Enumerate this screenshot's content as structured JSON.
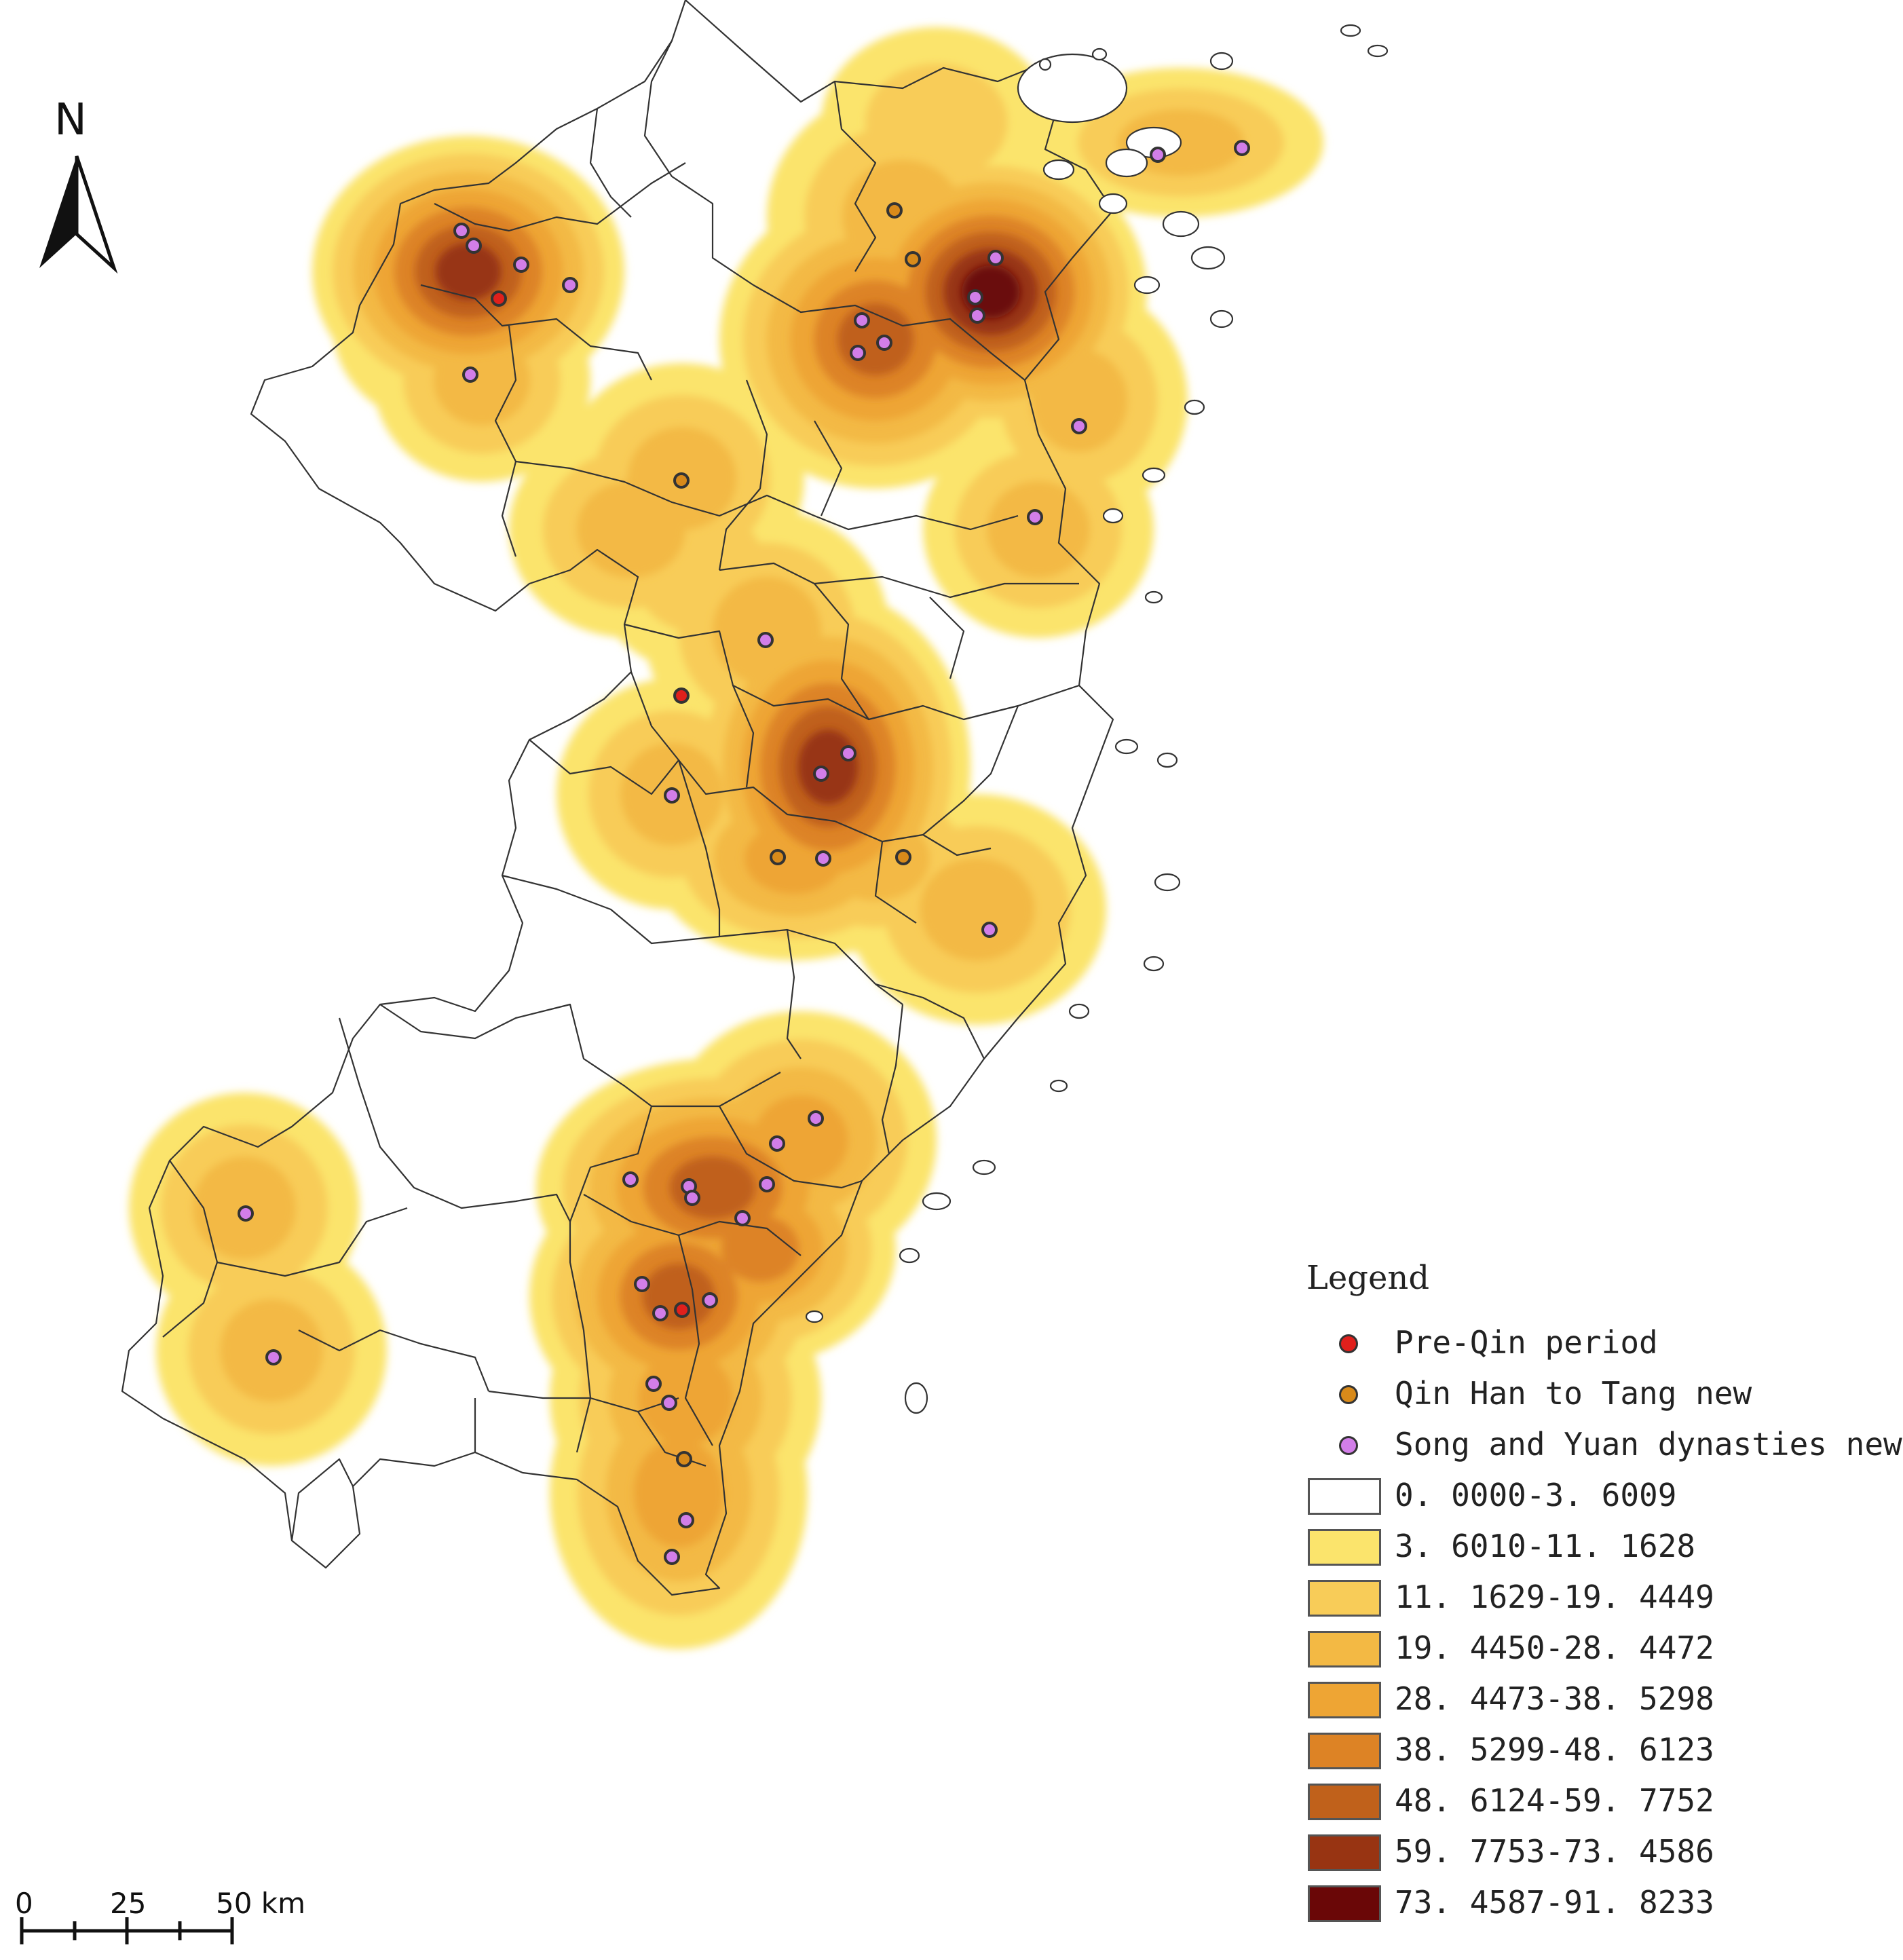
{
  "map": {
    "north_label": "N",
    "scale": {
      "ticks": [
        "0",
        "25",
        "50 km"
      ]
    },
    "layers": [
      "kernel-density-surface",
      "county-boundaries",
      "site-points"
    ]
  },
  "legend": {
    "title": "Legend",
    "point_items": [
      {
        "label": "Pre-Qin period",
        "color": "#e0201c"
      },
      {
        "label": "Qin Han to Tang new",
        "color": "#d88a1a"
      },
      {
        "label": "Song and Yuan dynasties new",
        "color": "#d27ee8"
      }
    ],
    "density_classes": [
      {
        "label": "0. 0000-3. 6009",
        "color": "#ffffff"
      },
      {
        "label": "3. 6010-11. 1628",
        "color": "#fbe46c"
      },
      {
        "label": "11. 1629-19. 4449",
        "color": "#f8cc58"
      },
      {
        "label": "19. 4450-28. 4472",
        "color": "#f3b944"
      },
      {
        "label": "28. 4473-38. 5298",
        "color": "#eea534"
      },
      {
        "label": "38. 5299-48. 6123",
        "color": "#dd8325"
      },
      {
        "label": "48. 6124-59. 7752",
        "color": "#c0611b"
      },
      {
        "label": "59. 7753-73. 4586",
        "color": "#983412"
      },
      {
        "label": "73. 4587-91. 8233",
        "color": "#6a0707"
      }
    ]
  }
}
